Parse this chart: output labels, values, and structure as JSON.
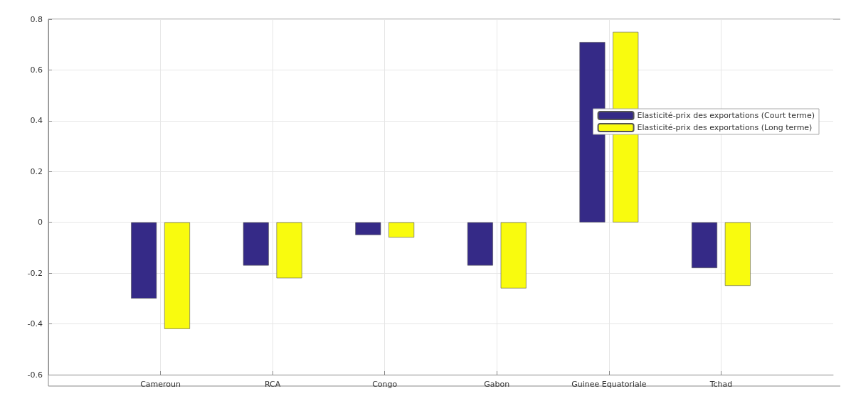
{
  "chart_data": {
    "type": "bar",
    "categories": [
      "Cameroun",
      "RCA",
      "Congo",
      "Gabon",
      "Guinee Equatoriale",
      "Tchad"
    ],
    "series": [
      {
        "name": "Elasticité-prix des exportations (Court terme)",
        "color": "#352a87",
        "values": [
          -0.3,
          -0.17,
          -0.05,
          -0.17,
          0.71,
          -0.18
        ]
      },
      {
        "name": "Elasticité-prix des exportations (Long terme)",
        "color": "#f9fb0e",
        "values": [
          -0.42,
          -0.22,
          -0.06,
          -0.26,
          0.75,
          -0.25
        ]
      }
    ],
    "ylim": [
      -0.6,
      0.8
    ],
    "yticks": [
      -0.6,
      -0.4,
      -0.2,
      0,
      0.2,
      0.4,
      0.6,
      0.8
    ],
    "grid": true,
    "legend": "right"
  }
}
